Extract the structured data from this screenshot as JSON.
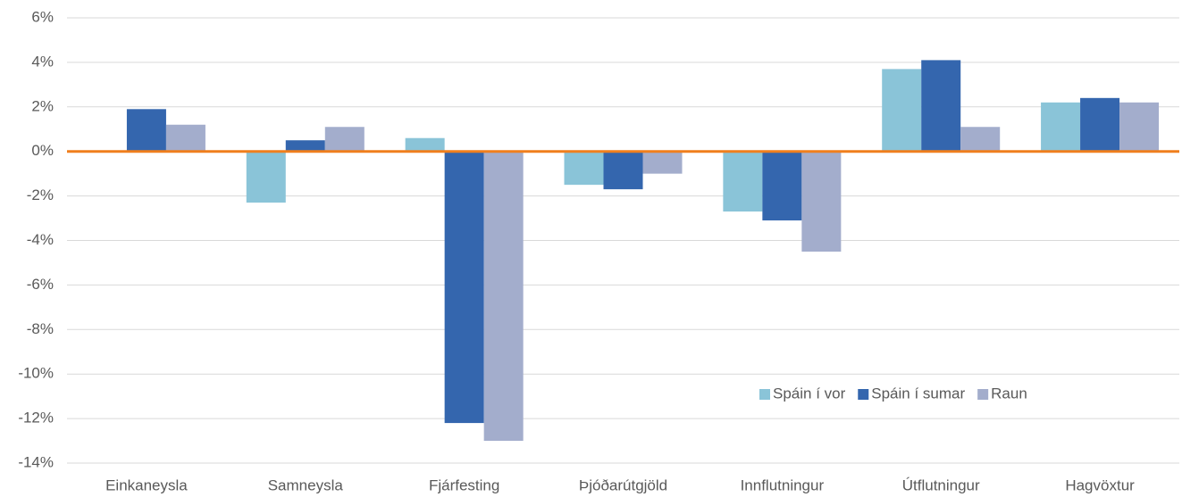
{
  "chart_data": {
    "type": "bar",
    "categories": [
      "Einkaneysla",
      "Samneysla",
      "Fjárfesting",
      "Þjóðarútgjöld",
      "Innflutningur",
      "Útflutningur",
      "Hagvöxtur"
    ],
    "series": [
      {
        "name": "Spáin í vor",
        "color": "#8ac4d8",
        "values": [
          null,
          -2.3,
          0.6,
          -1.5,
          -2.7,
          3.7,
          2.2
        ]
      },
      {
        "name": "Spáin í sumar",
        "color": "#3466ae",
        "values": [
          1.9,
          0.5,
          -12.2,
          -1.7,
          -3.1,
          4.1,
          2.4
        ]
      },
      {
        "name": "Raun",
        "color": "#a3adcc",
        "values": [
          1.2,
          1.1,
          -13.0,
          -1.0,
          -4.5,
          1.1,
          2.2
        ]
      }
    ],
    "ylim": [
      -14,
      6
    ],
    "yticks": [
      {
        "value": -14,
        "label": "-14%"
      },
      {
        "value": -12,
        "label": "-12%"
      },
      {
        "value": -10,
        "label": "-10%"
      },
      {
        "value": -8,
        "label": "-8%"
      },
      {
        "value": -6,
        "label": "-6%"
      },
      {
        "value": -4,
        "label": "-4%"
      },
      {
        "value": -2,
        "label": "-2%"
      },
      {
        "value": 0,
        "label": "0%"
      },
      {
        "value": 2,
        "label": "2%"
      },
      {
        "value": 4,
        "label": "4%"
      },
      {
        "value": 6,
        "label": "6%"
      }
    ],
    "grid": true,
    "zero_line_color": "#f07f1d",
    "legend": "lower right"
  }
}
